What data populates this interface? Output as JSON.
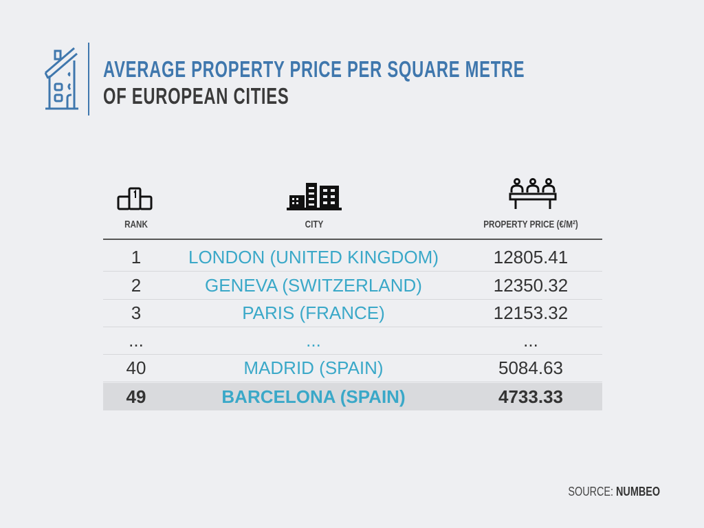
{
  "title": {
    "line1": "AVERAGE PROPERTY PRICE PER SQUARE METRE",
    "line2": "OF EUROPEAN CITIES"
  },
  "colors": {
    "title_blue": "#3f77ad",
    "city_teal": "#3aa8c8",
    "text_dark": "#333333",
    "background": "#eeeff2",
    "highlight_row": "#d9dadd"
  },
  "icons": {
    "logo": "house-icon",
    "rank": "podium-icon",
    "city": "buildings-icon",
    "price": "people-table-icon"
  },
  "source": {
    "label": "SOURCE:",
    "name": "NUMBEO"
  },
  "chart_data": {
    "type": "table",
    "columns": [
      "RANK",
      "CITY",
      "PROPERTY PRICE (€/M²)"
    ],
    "rows": [
      {
        "rank": "1",
        "city": "LONDON (UNITED KINGDOM)",
        "price": "12805.41"
      },
      {
        "rank": "2",
        "city": "GENEVA (SWITZERLAND)",
        "price": "12350.32"
      },
      {
        "rank": "3",
        "city": "PARIS (FRANCE)",
        "price": "12153.32"
      },
      {
        "rank": "...",
        "city": "...",
        "price": "..."
      },
      {
        "rank": "40",
        "city": "MADRID (SPAIN)",
        "price": "5084.63"
      },
      {
        "rank": "49",
        "city": "BARCELONA (SPAIN)",
        "price": "4733.33",
        "highlighted": true
      }
    ]
  }
}
